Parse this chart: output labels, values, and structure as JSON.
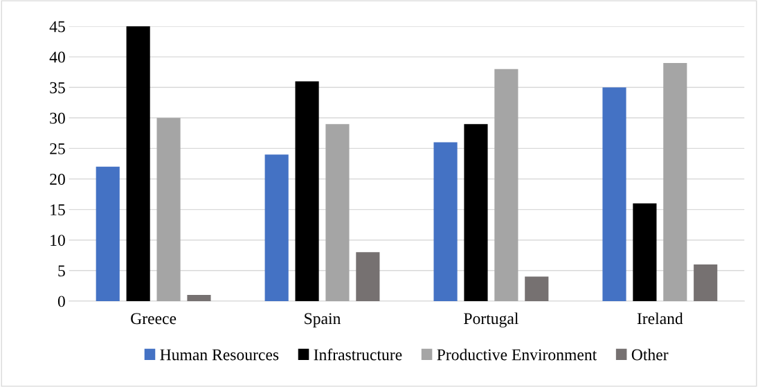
{
  "chart_data": {
    "type": "bar",
    "categories": [
      "Greece",
      "Spain",
      "Portugal",
      "Ireland"
    ],
    "series": [
      {
        "name": "Human Resources",
        "color": "#4472c4",
        "values": [
          22,
          24,
          26,
          35
        ]
      },
      {
        "name": "Infrastructure",
        "color": "#000000",
        "values": [
          45,
          36,
          29,
          16
        ]
      },
      {
        "name": "Productive Environment",
        "color": "#a5a5a5",
        "values": [
          30,
          29,
          38,
          39
        ]
      },
      {
        "name": "Other",
        "color": "#767171",
        "values": [
          1,
          8,
          4,
          6
        ]
      }
    ],
    "ylim": [
      0,
      45
    ],
    "yticks": [
      0,
      5,
      10,
      15,
      20,
      25,
      30,
      35,
      40,
      45
    ],
    "grid": "y",
    "legend": "bottom"
  }
}
